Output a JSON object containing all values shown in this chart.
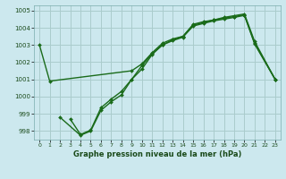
{
  "title": "Graphe pression niveau de la mer (hPa)",
  "background_color": "#cce8ee",
  "grid_color": "#aacccc",
  "line_color": "#1a6b1a",
  "xlim": [
    -0.5,
    23.5
  ],
  "ylim": [
    997.5,
    1005.3
  ],
  "yticks": [
    998,
    999,
    1000,
    1001,
    1002,
    1003,
    1004,
    1005
  ],
  "xticks": [
    0,
    1,
    2,
    3,
    4,
    5,
    6,
    7,
    8,
    9,
    10,
    11,
    12,
    13,
    14,
    15,
    16,
    17,
    18,
    19,
    20,
    21,
    22,
    23
  ],
  "line1": {
    "x": [
      0,
      1,
      9,
      10,
      11,
      12,
      13,
      14,
      15,
      16,
      17,
      18,
      19,
      20,
      21,
      23
    ],
    "y": [
      1003.0,
      1000.9,
      1001.5,
      1001.9,
      1002.55,
      1003.1,
      1003.35,
      1003.5,
      1004.2,
      1004.35,
      1004.45,
      1004.6,
      1004.7,
      1004.8,
      1003.2,
      1001.0
    ]
  },
  "line2": {
    "x": [
      3,
      4,
      5,
      6,
      7,
      8,
      9,
      10,
      11,
      12,
      13,
      14,
      15,
      16,
      17,
      18,
      19,
      20,
      21,
      23
    ],
    "y": [
      998.7,
      997.8,
      998.05,
      999.35,
      999.85,
      1000.3,
      1001.0,
      1001.8,
      1002.5,
      1003.0,
      1003.3,
      1003.5,
      1004.15,
      1004.3,
      1004.45,
      1004.55,
      1004.65,
      1004.75,
      1003.1,
      1001.0
    ]
  },
  "line3": {
    "x": [
      2,
      4,
      5,
      6,
      7,
      8,
      9,
      10,
      11,
      12,
      13,
      14,
      15,
      16,
      17,
      18,
      19,
      20,
      21,
      23
    ],
    "y": [
      998.8,
      997.75,
      998.0,
      999.2,
      999.7,
      1000.1,
      1001.0,
      1001.6,
      1002.45,
      1003.0,
      1003.25,
      1003.45,
      1004.1,
      1004.25,
      1004.4,
      1004.5,
      1004.6,
      1004.72,
      1003.05,
      1001.0
    ]
  }
}
